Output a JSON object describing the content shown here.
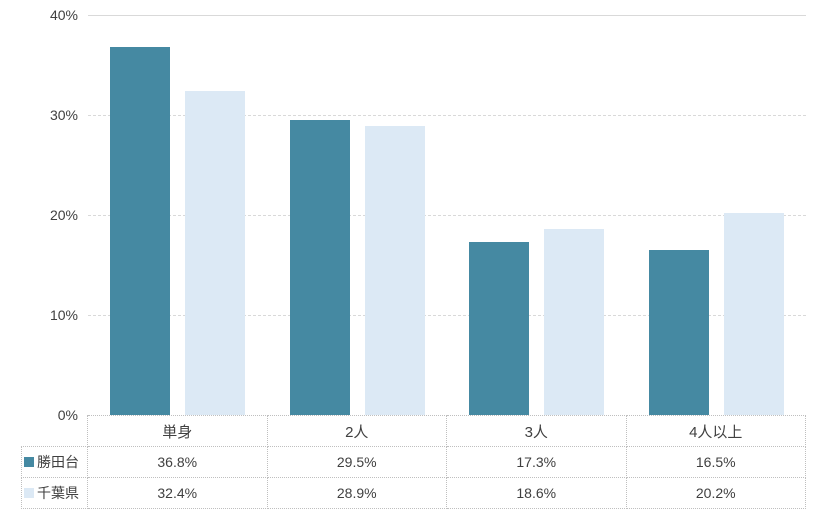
{
  "chart_data": {
    "type": "bar",
    "title": "",
    "xlabel": "",
    "ylabel": "",
    "categories": [
      "単身",
      "2人",
      "3人",
      "4人以上"
    ],
    "series": [
      {
        "name": "勝田台",
        "color": "#4589a2",
        "values": [
          36.8,
          29.5,
          17.3,
          16.5
        ],
        "labels": [
          "36.8%",
          "29.5%",
          "17.3%",
          "16.5%"
        ]
      },
      {
        "name": "千葉県",
        "color": "#dce9f5",
        "values": [
          32.4,
          28.9,
          18.6,
          20.2
        ],
        "labels": [
          "32.4%",
          "28.9%",
          "18.6%",
          "20.2%"
        ]
      }
    ],
    "ylim": [
      0,
      40
    ],
    "yticks": [
      0,
      10,
      20,
      30,
      40
    ],
    "ytick_labels": [
      "0%",
      "10%",
      "20%",
      "30%",
      "40%"
    ],
    "grid": "horizontal-dashed",
    "legend_position": "bottom-table",
    "value_format": "percent-1dp",
    "colors": {
      "grid_line": "#d9d9d9",
      "table_border": "#bfbfbf",
      "text": "#404040",
      "background": "#ffffff"
    }
  }
}
